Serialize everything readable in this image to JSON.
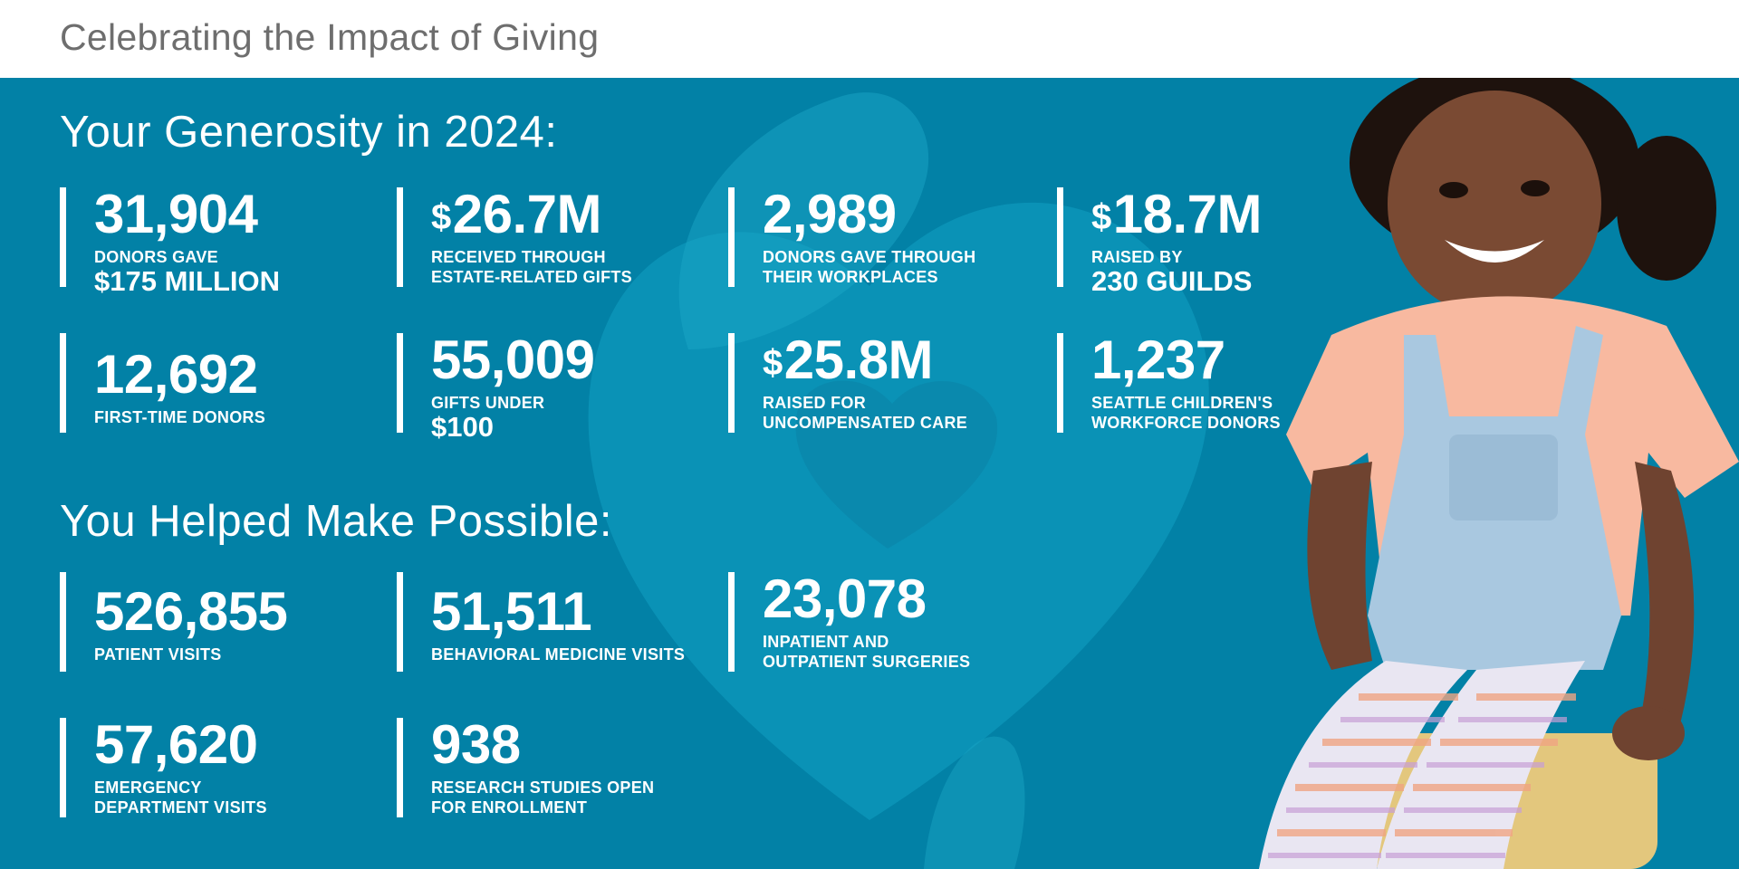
{
  "header": {
    "title": "Celebrating the Impact of Giving"
  },
  "generosity": {
    "heading": "Your Generosity in 2024:",
    "stats": [
      {
        "currency": "",
        "value": "31,904",
        "label": "DONORS GAVE",
        "emphasis": "$175 million"
      },
      {
        "currency": "$",
        "value": "26.7M",
        "label_lines": [
          "RECEIVED THROUGH",
          "ESTATE-RELATED GIFTS"
        ]
      },
      {
        "currency": "",
        "value": "2,989",
        "label_lines": [
          "DONORS GAVE THROUGH",
          "THEIR WORKPLACES"
        ]
      },
      {
        "currency": "$",
        "value": "18.7M",
        "label": "RAISED BY",
        "emphasis": "230 GUILDS"
      },
      {
        "currency": "",
        "value": "12,692",
        "label_lines": [
          "FIRST-TIME DONORS"
        ]
      },
      {
        "currency": "",
        "value": "55,009",
        "label": "GIFTS UNDER",
        "emphasis": "$100"
      },
      {
        "currency": "$",
        "value": "25.8M",
        "label_lines": [
          "RAISED FOR",
          "UNCOMPENSATED CARE"
        ]
      },
      {
        "currency": "",
        "value": "1,237",
        "label_lines": [
          "SEATTLE CHILDREN'S",
          "WORKFORCE DONORS"
        ]
      }
    ]
  },
  "possible": {
    "heading": "You Helped Make Possible:",
    "stats": [
      {
        "value": "526,855",
        "label_lines": [
          "PATIENT VISITS"
        ]
      },
      {
        "value": "51,511",
        "label_lines": [
          "BEHAVIORAL MEDICINE VISITS"
        ]
      },
      {
        "value": "23,078",
        "label_lines": [
          "INPATIENT AND",
          "OUTPATIENT SURGERIES"
        ]
      },
      {
        "value": "57,620",
        "label_lines": [
          "EMERGENCY",
          "DEPARTMENT VISITS"
        ]
      },
      {
        "value": "938",
        "label_lines": [
          "RESEARCH STUDIES OPEN",
          "FOR ENROLLMENT"
        ]
      }
    ]
  },
  "colors": {
    "panel": "#0281a6",
    "shape_light": "#1aa0c1",
    "shape_mid": "#0d92b5",
    "text": "#ffffff",
    "header_text": "#6e6e6e"
  }
}
